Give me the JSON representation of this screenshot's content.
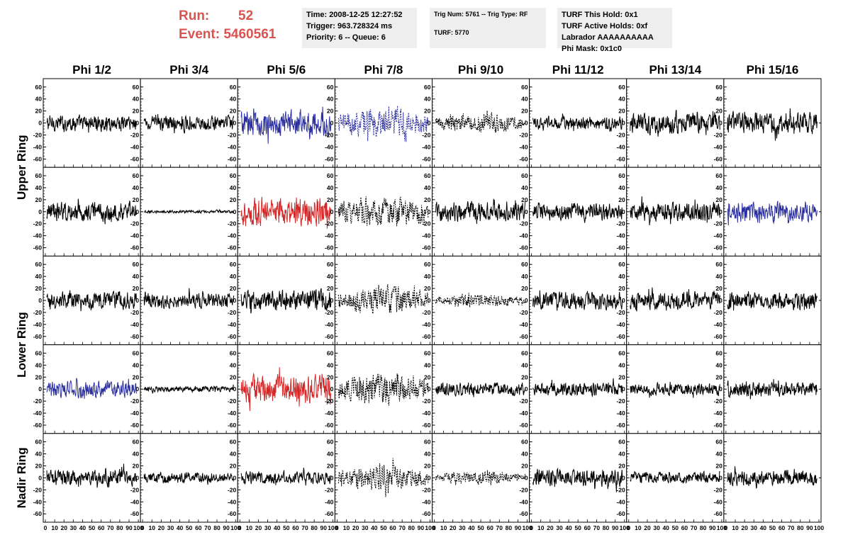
{
  "header": {
    "run_label": "Run:",
    "run_value": "52",
    "event_label": "Event:",
    "event_value": "5460561"
  },
  "info_boxes": {
    "box1": {
      "line1": "Time: 2008-12-25 12:27:52",
      "line2": "Trigger: 963.728324 ms",
      "line3": "Priority: 6 -- Queue: 6"
    },
    "box2": {
      "line1": "Trig Num: 5761 -- Trig Type: RF",
      "line2": "TURF: 5770"
    },
    "box3": {
      "line1": "TURF This Hold: 0x1",
      "line2": "TURF Active Holds: 0xf",
      "line3": "Labrador AAAAAAAAAA",
      "line4": "Phi Mask: 0x1c0"
    }
  },
  "colors": {
    "header_red": "#d9534f",
    "trace_black": "#000000",
    "trace_blue": "#2b2fa0",
    "trace_red": "#d32626",
    "box_bg": "#eeeeee"
  },
  "chart_data": {
    "type": "line",
    "column_titles": [
      "Phi 1/2",
      "Phi 3/4",
      "Phi 5/6",
      "Phi 7/8",
      "Phi 9/10",
      "Phi 11/12",
      "Phi 13/14",
      "Phi 15/16"
    ],
    "ring_titles": [
      "Upper Ring",
      "Lower Ring",
      "Nadir Ring"
    ],
    "rows": 5,
    "x_range": [
      0,
      100
    ],
    "y_range": [
      -68,
      68
    ],
    "y_ticks": [
      -60,
      -40,
      -20,
      0,
      20,
      40,
      60
    ],
    "x_ticks": [
      0,
      10,
      20,
      30,
      40,
      50,
      60,
      70,
      80,
      90,
      100
    ],
    "panels": [
      {
        "row": 0,
        "col": 0,
        "color": "black",
        "style": "solid",
        "amplitude": 17
      },
      {
        "row": 0,
        "col": 1,
        "color": "black",
        "style": "solid",
        "amplitude": 15
      },
      {
        "row": 0,
        "col": 2,
        "color": "blue",
        "style": "solid",
        "amplitude": 28
      },
      {
        "row": 0,
        "col": 3,
        "color": "blue",
        "style": "dotted",
        "amplitude": 35
      },
      {
        "row": 0,
        "col": 4,
        "color": "black",
        "style": "dotted",
        "amplitude": 22
      },
      {
        "row": 0,
        "col": 5,
        "color": "black",
        "style": "solid",
        "amplitude": 14
      },
      {
        "row": 0,
        "col": 6,
        "color": "black",
        "style": "solid",
        "amplitude": 22
      },
      {
        "row": 0,
        "col": 7,
        "color": "black",
        "style": "solid",
        "amplitude": 22
      },
      {
        "row": 1,
        "col": 0,
        "color": "black",
        "style": "solid",
        "amplitude": 20
      },
      {
        "row": 1,
        "col": 1,
        "color": "black",
        "style": "solid",
        "amplitude": 3
      },
      {
        "row": 1,
        "col": 2,
        "color": "red",
        "style": "solid",
        "amplitude": 30
      },
      {
        "row": 1,
        "col": 3,
        "color": "black",
        "style": "dotted",
        "amplitude": 33
      },
      {
        "row": 1,
        "col": 4,
        "color": "black",
        "style": "solid",
        "amplitude": 20
      },
      {
        "row": 1,
        "col": 5,
        "color": "black",
        "style": "solid",
        "amplitude": 18
      },
      {
        "row": 1,
        "col": 6,
        "color": "black",
        "style": "solid",
        "amplitude": 20
      },
      {
        "row": 1,
        "col": 7,
        "color": "blue",
        "style": "solid",
        "amplitude": 22
      },
      {
        "row": 2,
        "col": 0,
        "color": "black",
        "style": "solid",
        "amplitude": 18
      },
      {
        "row": 2,
        "col": 1,
        "color": "black",
        "style": "solid",
        "amplitude": 16
      },
      {
        "row": 2,
        "col": 2,
        "color": "black",
        "style": "solid",
        "amplitude": 22
      },
      {
        "row": 2,
        "col": 3,
        "color": "black",
        "style": "dotted",
        "amplitude": 30
      },
      {
        "row": 2,
        "col": 4,
        "color": "black",
        "style": "dotted",
        "amplitude": 14
      },
      {
        "row": 2,
        "col": 5,
        "color": "black",
        "style": "solid",
        "amplitude": 18
      },
      {
        "row": 2,
        "col": 6,
        "color": "black",
        "style": "solid",
        "amplitude": 18
      },
      {
        "row": 2,
        "col": 7,
        "color": "black",
        "style": "solid",
        "amplitude": 18
      },
      {
        "row": 3,
        "col": 0,
        "color": "blue",
        "style": "solid",
        "amplitude": 18
      },
      {
        "row": 3,
        "col": 1,
        "color": "black",
        "style": "solid",
        "amplitude": 6
      },
      {
        "row": 3,
        "col": 2,
        "color": "red",
        "style": "solid",
        "amplitude": 28
      },
      {
        "row": 3,
        "col": 3,
        "color": "black",
        "style": "dotted",
        "amplitude": 33
      },
      {
        "row": 3,
        "col": 4,
        "color": "black",
        "style": "solid",
        "amplitude": 14
      },
      {
        "row": 3,
        "col": 5,
        "color": "black",
        "style": "solid",
        "amplitude": 14
      },
      {
        "row": 3,
        "col": 6,
        "color": "black",
        "style": "solid",
        "amplitude": 13
      },
      {
        "row": 3,
        "col": 7,
        "color": "black",
        "style": "solid",
        "amplitude": 17
      },
      {
        "row": 4,
        "col": 0,
        "color": "black",
        "style": "solid",
        "amplitude": 17
      },
      {
        "row": 4,
        "col": 1,
        "color": "black",
        "style": "solid",
        "amplitude": 11
      },
      {
        "row": 4,
        "col": 2,
        "color": "black",
        "style": "solid",
        "amplitude": 13
      },
      {
        "row": 4,
        "col": 3,
        "color": "black",
        "style": "dotted",
        "amplitude": 28
      },
      {
        "row": 4,
        "col": 4,
        "color": "black",
        "style": "dotted",
        "amplitude": 14
      },
      {
        "row": 4,
        "col": 5,
        "color": "black",
        "style": "solid",
        "amplitude": 18
      },
      {
        "row": 4,
        "col": 6,
        "color": "black",
        "style": "solid",
        "amplitude": 12
      },
      {
        "row": 4,
        "col": 7,
        "color": "black",
        "style": "solid",
        "amplitude": 16
      }
    ]
  }
}
